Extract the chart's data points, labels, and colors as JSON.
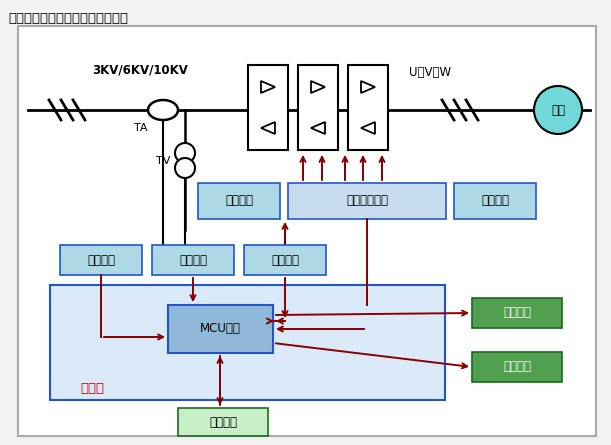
{
  "title": "高压固态软启动柜的工作原理是：",
  "bg_color": "#f2f2f2",
  "diagram_bg": "#ffffff",
  "box_blue_fill": "#add8e6",
  "box_blue_border": "#2255cc",
  "box_light_blue_fill": "#c8dcf0",
  "box_light_blue_border": "#2255cc",
  "controller_fill": "#daeaf8",
  "controller_border": "#2255cc",
  "mcu_fill": "#90b8d8",
  "mcu_border": "#2255cc",
  "box_green_fill": "#50a050",
  "box_green_fill_light": "#c8eec8",
  "box_green_border": "#1a6b1a",
  "arrow_color": "#880000",
  "line_color": "#000000",
  "text_color": "#000000",
  "red_text": "#cc0000",
  "cyan_circle_fill": "#70d8d8",
  "voltage_label": "3KV/6KV/10KV",
  "uvw_label": "U、V、W",
  "ta_label": "TA",
  "tv_label": "TV",
  "motor_label": "电机",
  "box1_label": "均压电路",
  "box2_label": "光纤隔离驱动",
  "box3_label": "阻容电路",
  "box4_label": "电流测量",
  "box5_label": "同步检测",
  "box6_label": "电压测量",
  "mcu_label": "MCU控制",
  "controller_label": "控制器",
  "box7_label": "开入开出",
  "box8_label": "远程通讯",
  "box9_label": "显示面板"
}
